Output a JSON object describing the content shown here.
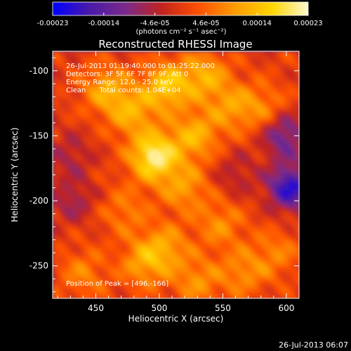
{
  "chart_data": {
    "type": "heatmap",
    "title": "Reconstructed RHESSI Image",
    "xlabel": "Heliocentric X (arcsec)",
    "ylabel": "Heliocentric Y (arcsec)",
    "xlim": [
      416,
      610
    ],
    "ylim": [
      -275,
      -85
    ],
    "x_ticks": [
      450,
      500,
      550,
      600
    ],
    "y_ticks": [
      -100,
      -150,
      -200,
      -250
    ],
    "colorbar": {
      "ticks": [
        "-0.00023",
        "-0.00014",
        "-4.6e-05",
        "4.6e-05",
        "0.00014",
        "0.00023"
      ],
      "units": "(photons cm⁻² s⁻¹ asec⁻²)",
      "range": [
        -0.00023,
        0.00023
      ],
      "colors": [
        "#0000ff",
        "#4a1aa8",
        "#7a2a8a",
        "#c2231f",
        "#ff5000",
        "#ff9c00",
        "#ffd400",
        "#fff9d0"
      ]
    },
    "annotations": [
      "26-Jul-2013 01:19:40.000 to 01:25:22.000",
      "Detectors: 3F 5F 6F 7F 8F 9F, Att 0",
      "Energy Range: 12.0 - 25.0 keV",
      "Clean      Total counts: 1.04E+04",
      "Position of Peak = [496,-166]"
    ],
    "peak": {
      "x": 496,
      "y": -166
    },
    "hot_spots": [
      {
        "x": 496,
        "y": -166,
        "level": 0.88
      },
      {
        "x": 506,
        "y": -112,
        "level": 0.64
      },
      {
        "x": 536,
        "y": -104,
        "level": 0.48
      },
      {
        "x": 478,
        "y": -132,
        "level": 0.46
      },
      {
        "x": 528,
        "y": -150,
        "level": 0.5
      },
      {
        "x": 458,
        "y": -114,
        "level": 0.46
      },
      {
        "x": 520,
        "y": -190,
        "level": 0.4
      },
      {
        "x": 548,
        "y": -218,
        "level": 0.34
      },
      {
        "x": 505,
        "y": -236,
        "level": 0.4
      },
      {
        "x": 488,
        "y": -248,
        "level": 0.42
      },
      {
        "x": 530,
        "y": -262,
        "level": 0.36
      },
      {
        "x": 566,
        "y": -255,
        "level": 0.34
      },
      {
        "x": 440,
        "y": -256,
        "level": 0.3
      },
      {
        "x": 473,
        "y": -208,
        "level": 0.28
      },
      {
        "x": 557,
        "y": -128,
        "level": 0.38
      },
      {
        "x": 582,
        "y": -128,
        "level": 0.3
      },
      {
        "x": 592,
        "y": -240,
        "level": 0.28
      }
    ],
    "cold_spots": [
      {
        "x": 603,
        "y": -190,
        "level": -0.85
      },
      {
        "x": 598,
        "y": -150,
        "level": -0.55
      },
      {
        "x": 432,
        "y": -200,
        "level": -0.3
      },
      {
        "x": 430,
        "y": -165,
        "level": -0.25
      },
      {
        "x": 560,
        "y": -180,
        "level": -0.22
      }
    ]
  },
  "footer": {
    "timestamp": "26-Jul-2013 06:07"
  }
}
